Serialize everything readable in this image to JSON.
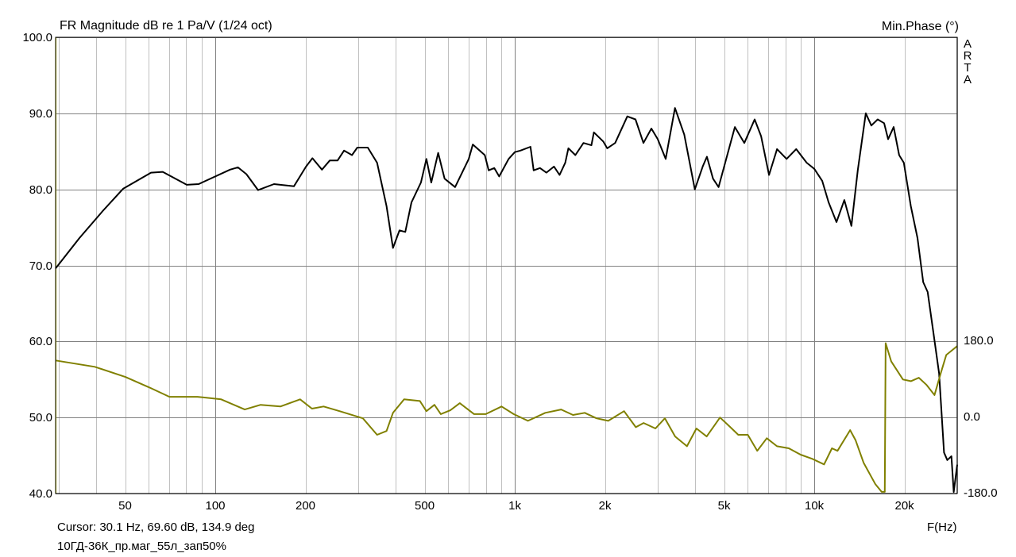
{
  "chart_data": {
    "type": "line",
    "title": "FR Magnitude dB re 1 Pa/V (1/24 oct)",
    "right_axis_title": "Min.Phase (°)",
    "xlabel": "F(Hz)",
    "x_scale": "log",
    "xlim": [
      29.3,
      30000
    ],
    "ylim": [
      40,
      100
    ],
    "y2lim": [
      -180,
      180
    ],
    "grid": true,
    "watermark": "ARTA",
    "x_ticks": [
      {
        "v": 50,
        "label": "50"
      },
      {
        "v": 100,
        "label": "100"
      },
      {
        "v": 200,
        "label": "200"
      },
      {
        "v": 500,
        "label": "500"
      },
      {
        "v": 1000,
        "label": "1k"
      },
      {
        "v": 2000,
        "label": "2k"
      },
      {
        "v": 5000,
        "label": "5k"
      },
      {
        "v": 10000,
        "label": "10k"
      },
      {
        "v": 20000,
        "label": "20k"
      }
    ],
    "y_ticks": [
      {
        "v": 100,
        "label": "100.0"
      },
      {
        "v": 90,
        "label": "90.0"
      },
      {
        "v": 80,
        "label": "80.0"
      },
      {
        "v": 70,
        "label": "70.0"
      },
      {
        "v": 60,
        "label": "60.0"
      },
      {
        "v": 50,
        "label": "50.0"
      },
      {
        "v": 40,
        "label": "40.0"
      }
    ],
    "y2_ticks": [
      {
        "v": 180,
        "label": "180.0"
      },
      {
        "v": 0,
        "label": "0.0"
      },
      {
        "v": -180,
        "label": "-180.0"
      }
    ],
    "series": [
      {
        "axis": "left",
        "color": "#000000",
        "points": [
          [
            29.3,
            69.6
          ],
          [
            35.2,
            73.6
          ],
          [
            42.2,
            77.2
          ],
          [
            49.3,
            80.1
          ],
          [
            61,
            82.2
          ],
          [
            66.8,
            82.3
          ],
          [
            80.3,
            80.6
          ],
          [
            88,
            80.7
          ],
          [
            112,
            82.6
          ],
          [
            119,
            82.9
          ],
          [
            127,
            82.0
          ],
          [
            139,
            79.9
          ],
          [
            157,
            80.7
          ],
          [
            183,
            80.4
          ],
          [
            201,
            83.0
          ],
          [
            211,
            84.1
          ],
          [
            227,
            82.6
          ],
          [
            241,
            83.8
          ],
          [
            256,
            83.8
          ],
          [
            269,
            85.1
          ],
          [
            286,
            84.5
          ],
          [
            298,
            85.5
          ],
          [
            323,
            85.5
          ],
          [
            347,
            83.5
          ],
          [
            373,
            77.8
          ],
          [
            392,
            72.3
          ],
          [
            412,
            74.6
          ],
          [
            431,
            74.4
          ],
          [
            452,
            78.3
          ],
          [
            486,
            80.9
          ],
          [
            507,
            84.0
          ],
          [
            526,
            80.9
          ],
          [
            555,
            84.8
          ],
          [
            583,
            81.4
          ],
          [
            632,
            80.3
          ],
          [
            702,
            84.0
          ],
          [
            724,
            85.9
          ],
          [
            794,
            84.5
          ],
          [
            818,
            82.5
          ],
          [
            854,
            82.8
          ],
          [
            887,
            81.7
          ],
          [
            954,
            84.0
          ],
          [
            1000,
            84.9
          ],
          [
            1044,
            85.1
          ],
          [
            1128,
            85.6
          ],
          [
            1156,
            82.5
          ],
          [
            1214,
            82.8
          ],
          [
            1275,
            82.2
          ],
          [
            1352,
            83.0
          ],
          [
            1411,
            81.9
          ],
          [
            1474,
            83.5
          ],
          [
            1510,
            85.4
          ],
          [
            1593,
            84.5
          ],
          [
            1695,
            86.1
          ],
          [
            1802,
            85.8
          ],
          [
            1837,
            87.5
          ],
          [
            1974,
            86.3
          ],
          [
            2035,
            85.4
          ],
          [
            2163,
            86.1
          ],
          [
            2375,
            89.6
          ],
          [
            2529,
            89.2
          ],
          [
            2688,
            86.1
          ],
          [
            2857,
            88.0
          ],
          [
            3000,
            86.6
          ],
          [
            3190,
            84.0
          ],
          [
            3425,
            90.7
          ],
          [
            3680,
            87.2
          ],
          [
            3990,
            80.0
          ],
          [
            4240,
            83.0
          ],
          [
            4380,
            84.3
          ],
          [
            4590,
            81.4
          ],
          [
            4790,
            80.3
          ],
          [
            5040,
            83.5
          ],
          [
            5430,
            88.2
          ],
          [
            5840,
            86.1
          ],
          [
            6320,
            89.2
          ],
          [
            6640,
            87.0
          ],
          [
            7060,
            81.9
          ],
          [
            7510,
            85.3
          ],
          [
            8080,
            84.0
          ],
          [
            8700,
            85.3
          ],
          [
            9430,
            83.5
          ],
          [
            10000,
            82.7
          ],
          [
            10630,
            81.1
          ],
          [
            11160,
            78.3
          ],
          [
            11860,
            75.7
          ],
          [
            12600,
            78.6
          ],
          [
            13300,
            75.2
          ],
          [
            13970,
            82.5
          ],
          [
            14850,
            90.0
          ],
          [
            15500,
            88.4
          ],
          [
            16280,
            89.2
          ],
          [
            17100,
            88.7
          ],
          [
            17630,
            86.6
          ],
          [
            18400,
            88.2
          ],
          [
            19200,
            84.5
          ],
          [
            19900,
            83.5
          ],
          [
            21000,
            77.8
          ],
          [
            22100,
            73.6
          ],
          [
            23100,
            67.8
          ],
          [
            23900,
            66.5
          ],
          [
            25000,
            61.1
          ],
          [
            26100,
            55.8
          ],
          [
            27100,
            45.4
          ],
          [
            27800,
            44.4
          ],
          [
            28700,
            44.9
          ],
          [
            29200,
            40.2
          ],
          [
            30000,
            43.8
          ]
        ]
      },
      {
        "axis": "right",
        "color": "#808000",
        "points": [
          [
            29.3,
            135
          ],
          [
            39.6,
            120
          ],
          [
            50.1,
            96
          ],
          [
            60.3,
            71
          ],
          [
            70.3,
            49
          ],
          [
            87.2,
            49
          ],
          [
            104.6,
            43
          ],
          [
            125.4,
            19
          ],
          [
            141.7,
            30
          ],
          [
            165,
            26
          ],
          [
            192,
            43
          ],
          [
            210.2,
            21
          ],
          [
            230,
            26
          ],
          [
            260,
            15
          ],
          [
            311,
            -2
          ],
          [
            347,
            -41
          ],
          [
            373,
            -32
          ],
          [
            392,
            11
          ],
          [
            427,
            43
          ],
          [
            482,
            39
          ],
          [
            507,
            15
          ],
          [
            539,
            30
          ],
          [
            566,
            8
          ],
          [
            609,
            17
          ],
          [
            655,
            34
          ],
          [
            731,
            8
          ],
          [
            800,
            8
          ],
          [
            903,
            26
          ],
          [
            991,
            8
          ],
          [
            1106,
            -8
          ],
          [
            1264,
            11
          ],
          [
            1428,
            19
          ],
          [
            1564,
            6
          ],
          [
            1712,
            11
          ],
          [
            1874,
            -2
          ],
          [
            2051,
            -8
          ],
          [
            2316,
            15
          ],
          [
            2536,
            -23
          ],
          [
            2692,
            -13
          ],
          [
            2948,
            -26
          ],
          [
            3171,
            -2
          ],
          [
            3431,
            -45
          ],
          [
            3758,
            -68
          ],
          [
            4039,
            -26
          ],
          [
            4372,
            -45
          ],
          [
            4845,
            0
          ],
          [
            5244,
            -23
          ],
          [
            5575,
            -41
          ],
          [
            5998,
            -41
          ],
          [
            6451,
            -79
          ],
          [
            6939,
            -49
          ],
          [
            7505,
            -68
          ],
          [
            8219,
            -73
          ],
          [
            8998,
            -88
          ],
          [
            9851,
            -98
          ],
          [
            10780,
            -111
          ],
          [
            11450,
            -73
          ],
          [
            11950,
            -79
          ],
          [
            13170,
            -30
          ],
          [
            13740,
            -54
          ],
          [
            14600,
            -107
          ],
          [
            15990,
            -158
          ],
          [
            16780,
            -176
          ],
          [
            17190,
            -176
          ],
          [
            17300,
            176
          ],
          [
            18060,
            133
          ],
          [
            19770,
            90
          ],
          [
            21010,
            86
          ],
          [
            22340,
            94
          ],
          [
            23720,
            77
          ],
          [
            25190,
            53
          ],
          [
            26440,
            105
          ],
          [
            27580,
            148
          ],
          [
            30000,
            169
          ]
        ]
      }
    ]
  },
  "footer": {
    "cursor": "Cursor: 30.1 Hz, 69.60 dB, 134.9 deg",
    "file_name": "10ГД-36К_пр.маг_55л_зап50%"
  }
}
